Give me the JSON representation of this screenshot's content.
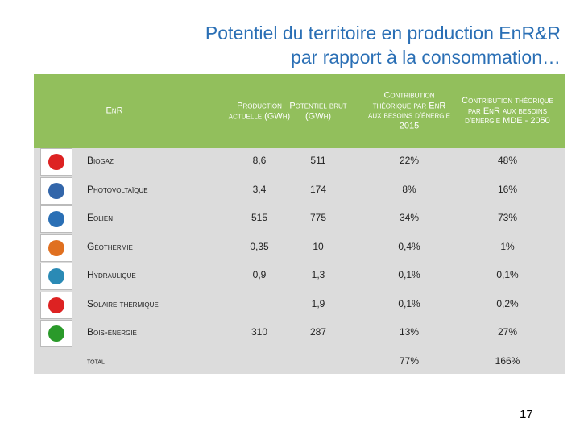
{
  "title": {
    "line1": "Potentiel du territoire en production EnR&R",
    "line2": "par rapport à la consommation…"
  },
  "table": {
    "header": [
      "EnR",
      "Production actuelle (GWh)",
      "Potentiel brut (GWh)",
      "Contribution théorique par EnR aux besoins d'énergie 2015",
      "Contribution théorique par EnR aux besoins d'énergie MDE - 2050"
    ],
    "rows": [
      [
        "Biogaz",
        "8,6",
        "511",
        "22%",
        "48%"
      ],
      [
        "Photovoltaïque",
        "3,4",
        "174",
        "8%",
        "16%"
      ],
      [
        "Eolien",
        "515",
        "775",
        "34%",
        "73%"
      ],
      [
        "Géothermie",
        "0,35",
        "10",
        "0,4%",
        "1%"
      ],
      [
        "Hydraulique",
        "0,9",
        "1,3",
        "0,1%",
        "0,1%"
      ],
      [
        "Solaire thermique",
        null,
        "1,9",
        "0,1%",
        "0,2%"
      ],
      [
        "Bois-énergie",
        "310",
        "287",
        "13%",
        "27%"
      ],
      [
        "total",
        null,
        null,
        "77%",
        "166%"
      ]
    ]
  },
  "page_number": "17"
}
